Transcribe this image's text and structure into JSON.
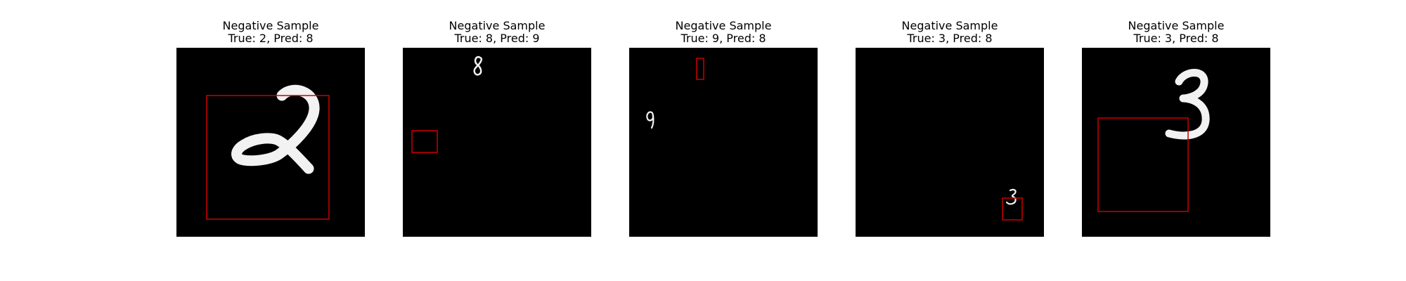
{
  "figure": {
    "panels": [
      {
        "title": "Negative Sample",
        "subtitle": "True: 2, Pred: 8",
        "digit_glyph": "2-digit-glyph",
        "box_color": "#cc0000"
      },
      {
        "title": "Negative Sample",
        "subtitle": "True: 8, Pred: 9",
        "digit_glyph": "8-digit-glyph",
        "box_color": "#cc0000"
      },
      {
        "title": "Negative Sample",
        "subtitle": "True: 9, Pred: 8",
        "digit_glyph": "9-digit-glyph",
        "box_color": "#cc0000"
      },
      {
        "title": "Negative Sample",
        "subtitle": "True: 3, Pred: 8",
        "digit_glyph": "3-digit-glyph",
        "box_color": "#cc0000"
      },
      {
        "title": "Negative Sample",
        "subtitle": "True: 3, Pred: 8",
        "digit_glyph": "3-digit-glyph",
        "box_color": "#cc0000"
      }
    ],
    "colors": {
      "image_background": "#000000",
      "digit_stroke": "#f2f2f2",
      "box_stroke": "#cc0000"
    }
  }
}
